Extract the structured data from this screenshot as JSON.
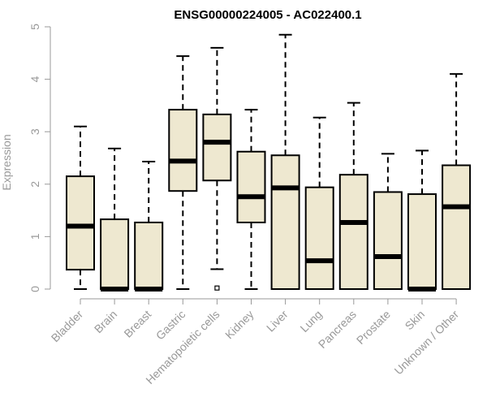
{
  "chart_data": {
    "type": "boxplot",
    "title": "ENSG00000224005 - AC022400.1",
    "ylabel": "Expression",
    "xlabel": "",
    "ylim": [
      0,
      5
    ],
    "yticks": [
      "0",
      "1",
      "2",
      "3",
      "4",
      "5"
    ],
    "box_fill": "#EEE8D0",
    "grid": false,
    "categories": [
      "Bladder",
      "Brain",
      "Breast",
      "Gastric",
      "Hematopoietic cells",
      "Kidney",
      "Liver",
      "Lung",
      "Pancreas",
      "Prostate",
      "Skin",
      "Unknown / Other"
    ],
    "boxes": [
      {
        "min": 0,
        "q1": 0.37,
        "median": 1.2,
        "q3": 2.15,
        "max": 3.1,
        "outliers": []
      },
      {
        "min": 0,
        "q1": 0,
        "median": 0,
        "q3": 1.33,
        "max": 2.68,
        "outliers": []
      },
      {
        "min": 0,
        "q1": 0,
        "median": 0,
        "q3": 1.27,
        "max": 2.43,
        "outliers": []
      },
      {
        "min": 0,
        "q1": 1.87,
        "median": 2.44,
        "q3": 3.42,
        "max": 4.44,
        "outliers": []
      },
      {
        "min": 0.38,
        "q1": 2.07,
        "median": 2.8,
        "q3": 3.33,
        "max": 4.6,
        "outliers": [
          0.02
        ]
      },
      {
        "min": 0,
        "q1": 1.27,
        "median": 1.76,
        "q3": 2.62,
        "max": 3.42,
        "outliers": []
      },
      {
        "min": 0,
        "q1": 0,
        "median": 1.93,
        "q3": 2.55,
        "max": 4.85,
        "outliers": []
      },
      {
        "min": 0,
        "q1": 0,
        "median": 0.54,
        "q3": 1.94,
        "max": 3.27,
        "outliers": []
      },
      {
        "min": 0,
        "q1": 0,
        "median": 1.27,
        "q3": 2.18,
        "max": 3.55,
        "outliers": []
      },
      {
        "min": 0,
        "q1": 0,
        "median": 0.62,
        "q3": 1.85,
        "max": 2.58,
        "outliers": []
      },
      {
        "min": 0,
        "q1": 0,
        "median": 0,
        "q3": 1.81,
        "max": 2.64,
        "outliers": []
      },
      {
        "min": 0,
        "q1": 0,
        "median": 1.57,
        "q3": 2.36,
        "max": 4.1,
        "outliers": []
      }
    ]
  }
}
